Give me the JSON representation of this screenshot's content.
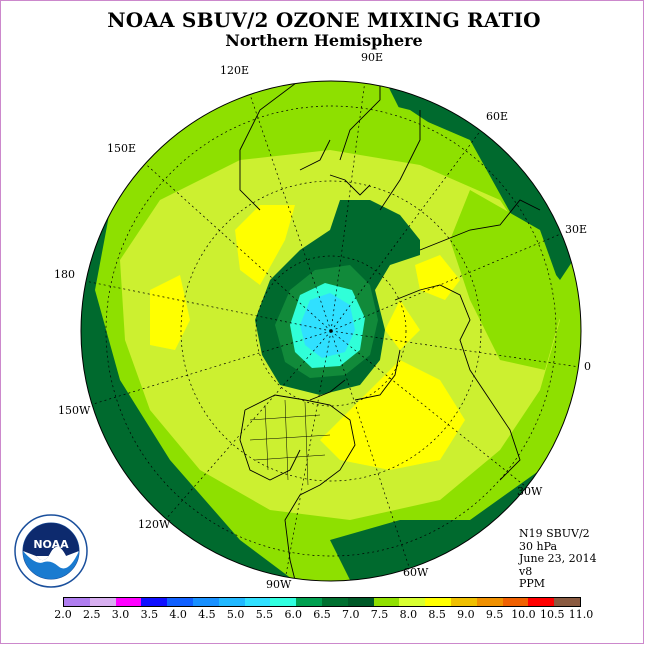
{
  "title": "NOAA SBUV/2 OZONE MIXING RATIO",
  "subtitle": "Northern Hemisphere",
  "longitude_labels": [
    "90E",
    "60E",
    "30E",
    "0",
    "30W",
    "60W",
    "90W",
    "120W",
    "150W",
    "180",
    "150E",
    "120E"
  ],
  "info": {
    "satellite": "N19 SBUV/2",
    "level": "30 hPa",
    "date": "June 23, 2014",
    "version": "v8",
    "units": "PPM"
  },
  "logo_text": "NOAA",
  "colorbar": {
    "ticks": [
      "2.0",
      "2.5",
      "3.0",
      "3.5",
      "4.0",
      "4.5",
      "5.0",
      "5.5",
      "6.0",
      "6.5",
      "7.0",
      "7.5",
      "8.0",
      "8.5",
      "9.0",
      "9.5",
      "10.0",
      "10.5",
      "11.0"
    ],
    "colors": [
      "#b07ef0",
      "#d8b0f0",
      "#ff00ff",
      "#1010ff",
      "#1060ff",
      "#1890ff",
      "#20b8ff",
      "#30e0ff",
      "#30ffe0",
      "#00a050",
      "#007030",
      "#005a28",
      "#90e000",
      "#d8ff30",
      "#ffff00",
      "#f0c000",
      "#f09000",
      "#f06000",
      "#ff0000",
      "#8a5a40"
    ]
  },
  "colors": {
    "dark_green": "#006a2e",
    "mid_green": "#118a3a",
    "light_green": "#8ee000",
    "yellow_green": "#ccf030",
    "yellow": "#ffff00",
    "cyan": "#30e0ff",
    "aqua": "#30ffd8"
  }
}
